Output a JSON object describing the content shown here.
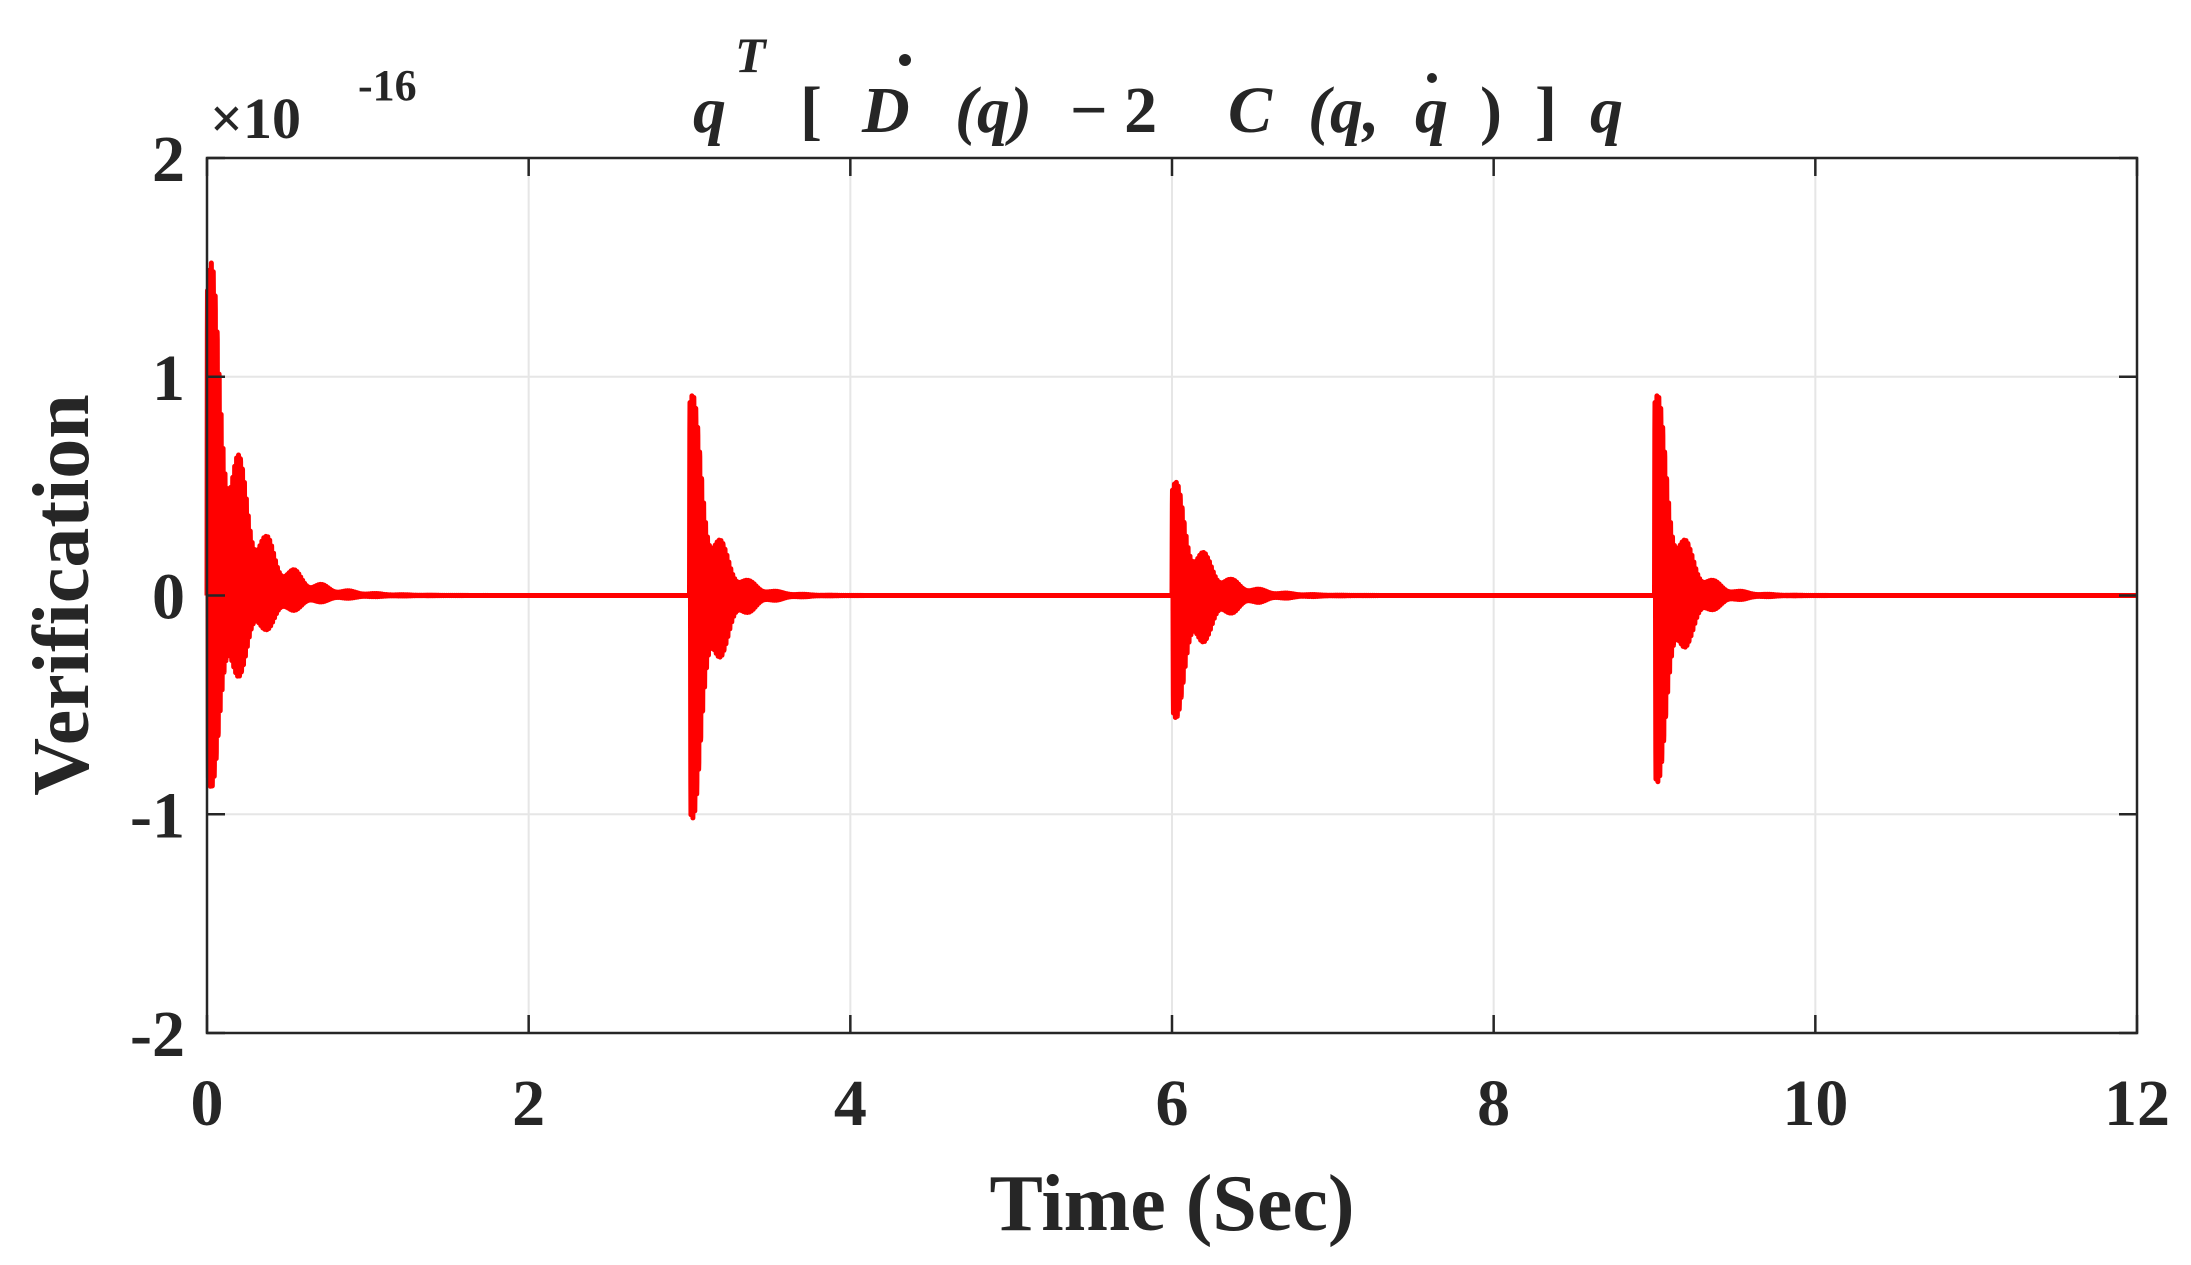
{
  "chart_data": {
    "type": "line",
    "title": "q^T [ Ḋ (q) − 2 C (q,q̇ ) ] q",
    "title_parts": {
      "q1": "q",
      "sup_T": "T",
      "br_open": "[",
      "D": "D",
      "paren_q": "(q)",
      "minus_two": "− 2",
      "C": "C",
      "paren_open": "(q,",
      "qdot": "q",
      "paren_close": ")",
      "br_close": "]",
      "q2": "q"
    },
    "xlabel": "Time (Sec)",
    "ylabel": "Verification",
    "exponent_base": "×10",
    "exponent_power": "-16",
    "xlim": [
      0,
      12
    ],
    "ylim": [
      -2,
      2
    ],
    "y_scale_factor": "1e-16",
    "x_ticks": [
      "0",
      "2",
      "4",
      "6",
      "8",
      "10",
      "12"
    ],
    "y_ticks": [
      "2",
      "1",
      "0",
      "-1",
      "-2"
    ],
    "grid": true,
    "legend": "none",
    "series": [
      {
        "color": "#ff0000",
        "style": "damped oscillation bursts",
        "bursts": [
          {
            "t0": 0.0,
            "max": 1.82,
            "min": -1.05,
            "decay_to_zero_by": 0.9
          },
          {
            "t0": 3.0,
            "max": 1.16,
            "min": -1.29,
            "decay_to_zero_by": 3.6
          },
          {
            "t0": 6.0,
            "max": 0.63,
            "min": -0.68,
            "decay_to_zero_by": 6.8
          },
          {
            "t0": 9.0,
            "max": 1.16,
            "min": -1.08,
            "decay_to_zero_by": 9.6
          }
        ]
      }
    ],
    "colors": {
      "line": "#ff0000",
      "axis": "#262626",
      "grid": "#e6e6e6",
      "background": "#ffffff"
    }
  }
}
